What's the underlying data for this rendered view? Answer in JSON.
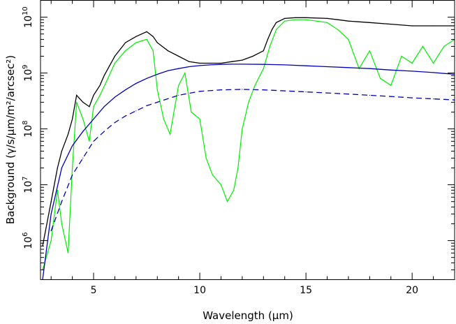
{
  "chart_data": {
    "type": "line",
    "title": "",
    "xlabel": "Wavelength (μm)",
    "ylabel": "Background (γ/s/μm/m²/arcsec²)",
    "xlim": [
      2.5,
      22
    ],
    "ylim": [
      200000,
      20000000000
    ],
    "yscale": "log",
    "x_ticks": [
      {
        "value": 5,
        "label": "5"
      },
      {
        "value": 10,
        "label": "10"
      },
      {
        "value": 15,
        "label": "15"
      },
      {
        "value": 20,
        "label": "20"
      }
    ],
    "y_ticks": [
      {
        "value": 1000000,
        "base": "10",
        "exp": "6"
      },
      {
        "value": 10000000,
        "base": "10",
        "exp": "7"
      },
      {
        "value": 100000000,
        "base": "10",
        "exp": "8"
      },
      {
        "value": 1000000000,
        "base": "10",
        "exp": "9"
      },
      {
        "value": 10000000000,
        "base": "10",
        "exp": "10"
      }
    ],
    "grid": false,
    "legend": false,
    "series": [
      {
        "style": "solid",
        "color": "#000000",
        "x": [
          2.6,
          3.0,
          3.3,
          3.5,
          3.8,
          4.0,
          4.2,
          4.5,
          4.8,
          5.0,
          5.3,
          5.5,
          6.0,
          6.5,
          7.0,
          7.5,
          7.8,
          8.0,
          8.5,
          9.0,
          9.5,
          10.0,
          10.5,
          11.0,
          11.5,
          12.0,
          12.5,
          13.0,
          13.2,
          13.4,
          13.6,
          14.0,
          14.5,
          15.0,
          16.0,
          16.5,
          17.0,
          18.0,
          19.0,
          20.0,
          21.0,
          22.0
        ],
        "y": [
          800000,
          5000000,
          20000000,
          40000000,
          80000000,
          150000000,
          400000000,
          300000000,
          250000000,
          400000000,
          600000000,
          900000000,
          2000000000,
          3500000000,
          4500000000,
          5500000000,
          4500000000,
          3500000000,
          2500000000,
          2000000000,
          1600000000,
          1500000000,
          1500000000,
          1500000000,
          1600000000,
          1700000000,
          2000000000,
          2500000000,
          4000000000,
          6000000000,
          8000000000,
          9500000000,
          9800000000,
          9800000000,
          9500000000,
          9000000000,
          8500000000,
          8000000000,
          7500000000,
          7000000000,
          7000000000,
          7000000000
        ]
      },
      {
        "style": "solid",
        "color": "#00ee00",
        "x": [
          2.6,
          3.0,
          3.3,
          3.5,
          3.8,
          4.0,
          4.2,
          4.5,
          4.8,
          5.0,
          5.3,
          5.6,
          6.0,
          6.5,
          7.0,
          7.5,
          7.8,
          8.0,
          8.3,
          8.6,
          9.0,
          9.3,
          9.6,
          10.0,
          10.3,
          10.6,
          11.0,
          11.3,
          11.6,
          11.8,
          12.0,
          12.3,
          12.6,
          13.0,
          13.3,
          13.6,
          14.0,
          14.5,
          15.0,
          15.5,
          16.0,
          16.5,
          17.0,
          17.5,
          18.0,
          18.5,
          19.0,
          19.5,
          20.0,
          20.5,
          21.0,
          21.5,
          22.0
        ],
        "y": [
          300000,
          1000000,
          8000000,
          2000000,
          600000,
          20000000,
          300000000,
          150000000,
          60000000,
          250000000,
          400000000,
          700000000,
          1500000000,
          2500000000,
          3500000000,
          4000000000,
          2500000000,
          500000000,
          150000000,
          80000000,
          600000000,
          1000000000,
          200000000,
          150000000,
          30000000,
          15000000,
          10000000,
          5000000,
          8000000,
          20000000,
          100000000,
          300000000,
          600000000,
          1200000000,
          3000000000,
          6000000000,
          8500000000,
          9000000000,
          9000000000,
          8500000000,
          8000000000,
          6000000000,
          4000000000,
          1200000000,
          2500000000,
          800000000,
          600000000,
          2000000000,
          1500000000,
          3000000000,
          1500000000,
          3000000000,
          4000000000
        ]
      },
      {
        "style": "solid",
        "color": "#0000bb",
        "x": [
          2.6,
          3.0,
          3.5,
          4.0,
          4.5,
          5.0,
          5.5,
          6.0,
          6.5,
          7.0,
          7.5,
          8.0,
          8.5,
          9.0,
          9.5,
          10.0,
          10.5,
          11.0,
          11.5,
          12.0,
          13.0,
          14.0,
          15.0,
          16.0,
          17.0,
          18.0,
          19.0,
          20.0,
          21.0,
          22.0
        ],
        "y": [
          200000,
          3000000,
          20000000,
          50000000,
          90000000,
          150000000,
          250000000,
          370000000,
          500000000,
          650000000,
          800000000,
          950000000,
          1100000000,
          1200000000,
          1300000000,
          1360000000,
          1400000000,
          1430000000,
          1440000000,
          1440000000,
          1430000000,
          1400000000,
          1350000000,
          1300000000,
          1250000000,
          1200000000,
          1130000000,
          1080000000,
          1020000000,
          950000000
        ]
      },
      {
        "style": "dashed",
        "color": "#0000bb",
        "x": [
          3.0,
          3.5,
          4.0,
          4.5,
          5.0,
          5.5,
          6.0,
          6.5,
          7.0,
          7.5,
          8.0,
          9.0,
          10.0,
          11.0,
          12.0,
          13.0,
          14.0,
          15.0,
          16.0,
          17.0,
          18.0,
          19.0,
          20.0,
          21.0,
          22.0
        ],
        "y": [
          1500000,
          5000000,
          15000000,
          30000000,
          60000000,
          90000000,
          130000000,
          170000000,
          210000000,
          260000000,
          300000000,
          400000000,
          470000000,
          500000000,
          510000000,
          500000000,
          480000000,
          460000000,
          440000000,
          420000000,
          400000000,
          380000000,
          360000000,
          345000000,
          330000000
        ]
      }
    ]
  }
}
